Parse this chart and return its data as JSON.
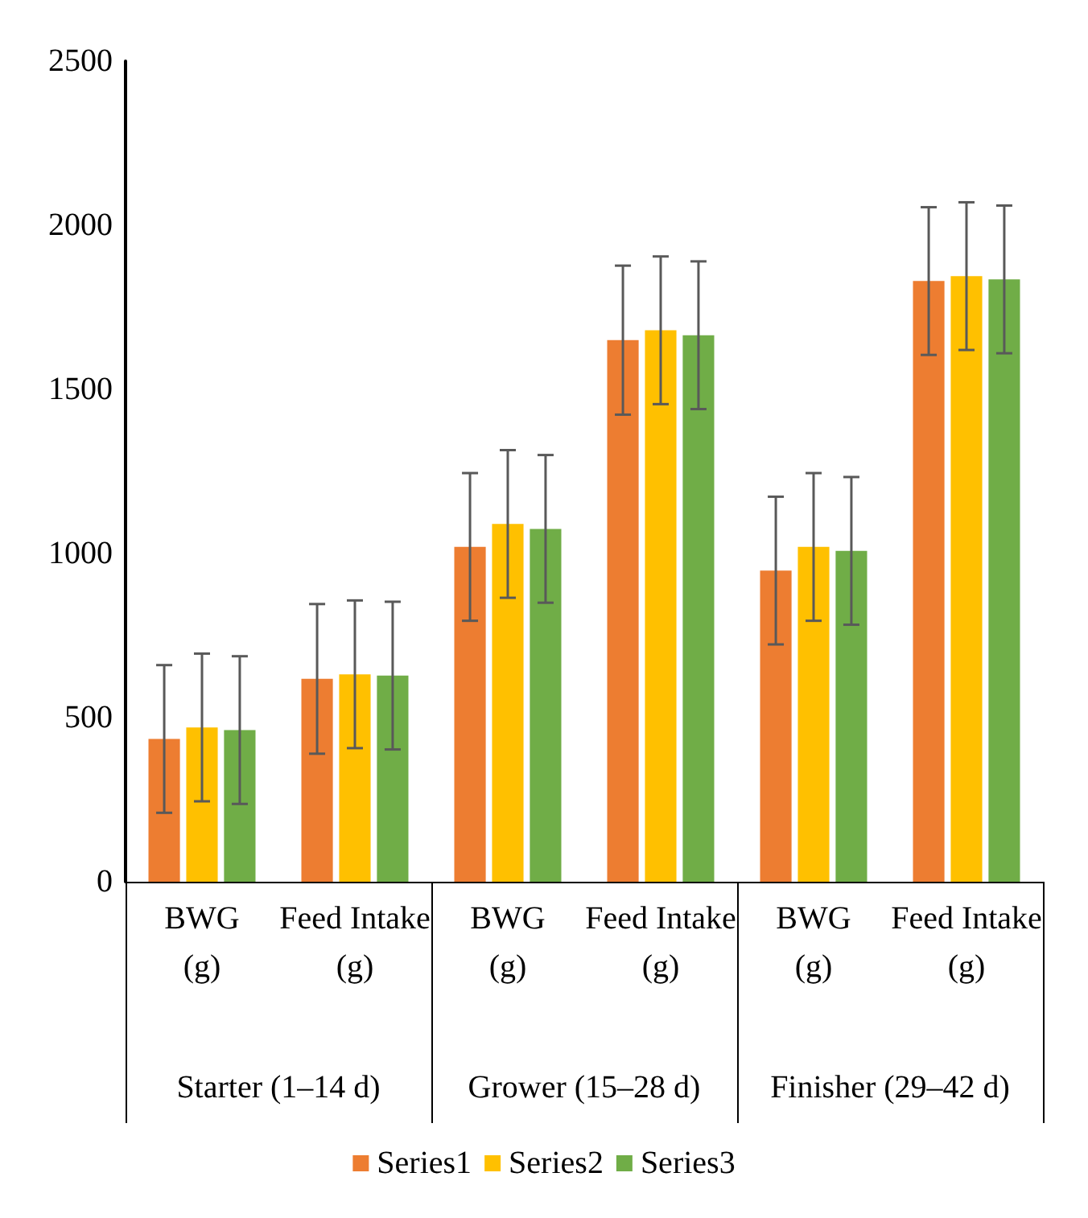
{
  "chart_data": {
    "type": "bar",
    "categories": [
      "BWG (g)",
      "Feed Intake (g)",
      "BWG (g)",
      "Feed Intake (g)",
      "BWG (g)",
      "Feed Intake (g)"
    ],
    "annotations": [
      "Starter (1–14 d)",
      "Grower (15–28 d)",
      "Finisher (29–42 d)"
    ],
    "series": [
      {
        "name": "Series1",
        "color": "#ed7d31",
        "values": [
          435,
          618,
          1020,
          1650,
          948,
          1830
        ],
        "errors": [
          225,
          228,
          225,
          227,
          225,
          225
        ]
      },
      {
        "name": "Series2",
        "color": "#ffc000",
        "values": [
          470,
          632,
          1090,
          1680,
          1020,
          1845
        ],
        "errors": [
          225,
          225,
          225,
          225,
          225,
          225
        ]
      },
      {
        "name": "Series3",
        "color": "#70ad47",
        "values": [
          462,
          628,
          1075,
          1665,
          1008,
          1835
        ],
        "errors": [
          225,
          225,
          225,
          225,
          225,
          225
        ]
      }
    ],
    "ylim": [
      0,
      2500
    ],
    "yticks": [
      0,
      500,
      1000,
      1500,
      2000,
      2500
    ],
    "grid": false,
    "legend": "bottom"
  }
}
